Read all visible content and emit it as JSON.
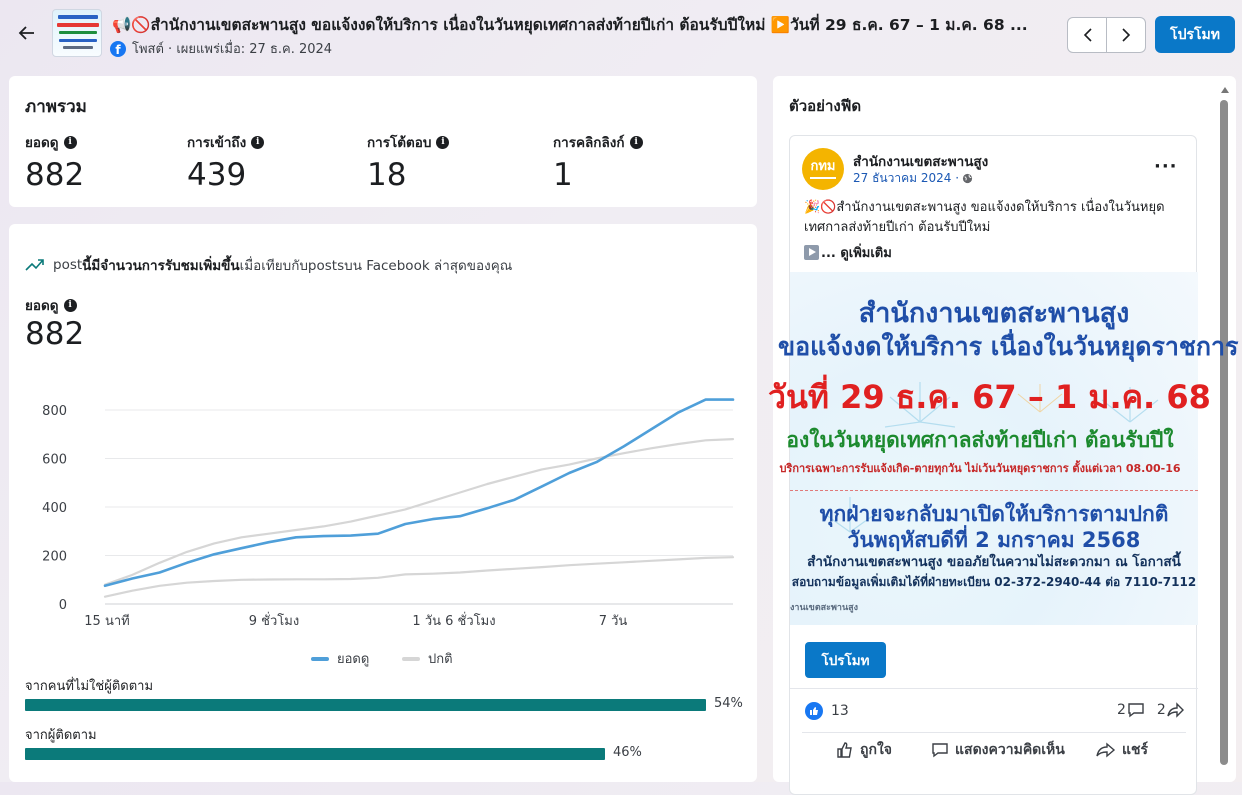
{
  "header": {
    "post_title": "📢🚫สำนักงานเขตสะพานสูง ขอแจ้งงดให้บริการ เนื่องในวันหยุดเทศกาลส่งท้ายปีเก่า ต้อนรับปีใหม่ ▶️วันที่ 29 ธ.ค. 67 – 1 ม.ค. 68 ...",
    "meta": "โพสต์ · เผยแพร่เมื่อ: 27 ธ.ค. 2024",
    "platform_icon": "facebook-icon",
    "promote_label": "โปรโมท"
  },
  "overview": {
    "title": "ภาพรวม",
    "metrics": [
      {
        "label": "ยอดดู",
        "value": "882"
      },
      {
        "label": "การเข้าถึง",
        "value": "439"
      },
      {
        "label": "การโต้ตอบ",
        "value": "18"
      },
      {
        "label": "การคลิกลิงก์",
        "value": "1"
      }
    ]
  },
  "performance": {
    "insight_prefix": "post",
    "insight_bold": "นี้มีจำนวนการรับชมเพิ่มขึ้น",
    "insight_suffix": "เมื่อเทียบกับpostsบน Facebook ล่าสุดของคุณ",
    "views_label": "ยอดดู",
    "views_value": "882",
    "legend_views": "ยอดดู",
    "legend_typical": "ปกติ",
    "non_followers_label": "จากคนที่ไม่ใช่ผู้ติดตาม",
    "non_followers_pct": "54%",
    "followers_label": "จากผู้ติดตาม",
    "followers_pct": "46%",
    "non_followers_value": 0.54,
    "followers_value": 0.46
  },
  "chart_data": {
    "type": "line",
    "x_tick_labels": [
      "15 นาที",
      "9 ชั่วโมง",
      "1 วัน 6 ชั่วโมง",
      "7 วัน"
    ],
    "ylim": [
      0,
      800
    ],
    "y_ticks": [
      0,
      200,
      400,
      600,
      800
    ],
    "grid": true,
    "legend_position": "bottom",
    "series": [
      {
        "name": "ยอดดู",
        "color": "#4f9fd9",
        "values": [
          75,
          105,
          130,
          170,
          205,
          230,
          255,
          275,
          280,
          282,
          290,
          330,
          350,
          362,
          395,
          430,
          485,
          540,
          585,
          650,
          720,
          790,
          843,
          843
        ]
      },
      {
        "name": "ปกติ",
        "color": "#d6d6d6",
        "values": [
          80,
          120,
          170,
          215,
          250,
          275,
          290,
          305,
          320,
          340,
          365,
          390,
          425,
          460,
          495,
          525,
          555,
          575,
          600,
          622,
          642,
          660,
          675,
          680
        ]
      },
      {
        "name": "",
        "color": "#d6d6d6",
        "values": [
          30,
          55,
          75,
          88,
          95,
          100,
          101,
          102,
          102,
          103,
          108,
          122,
          125,
          130,
          138,
          145,
          152,
          160,
          166,
          172,
          178,
          184,
          190,
          193
        ]
      }
    ]
  },
  "preview": {
    "title": "ตัวอย่างฟีด",
    "page_name": "สำนักงานเขตสะพานสูง",
    "date": "27 ธันวาคม 2024 ·",
    "caption": "🎉🚫สำนักงานเขตสะพานสูง ขอแจ้งงดให้บริการ เนื่องในวันหยุดเทศกาลส่งท้ายปีเก่า ต้อนรับปีใหม่",
    "see_more": "... ดูเพิ่มเติม",
    "avatar_text": "กทม",
    "poster": {
      "line1": "สำนักงานเขตสะพานสูง",
      "line2": "ขอแจ้งงดให้บริการ เนื่องในวันหยุดราชการ",
      "line3": "วันที่ 29 ธ.ค. 67 – 1 ม.ค. 68",
      "line4": "องในวันหยุดเทศกาลส่งท้ายปีเก่า ต้อนรับปีใ",
      "line5": "บริการเฉพาะการรับแจ้งเกิด-ตายทุกวัน ไม่เว้นวันหยุดราชการ ตั้งแต่เวลา 08.00-16",
      "line6": "ทุกฝ่ายจะกลับมาเปิดให้บริการตามปกติ",
      "line7": "วันพฤหัสบดีที่ 2 มกราคม 2568",
      "line8": "สำนักงานเขตสะพานสูง ขออภัยในความไม่สะดวกมา ณ โอกาสนี้",
      "line9": "สอบถามข้อมูลเพิ่มเติมได้ที่ฝ่ายทะเบียน 02-372-2940-44 ต่อ 7110-7112",
      "line10": "งานเขตสะพานสูง"
    },
    "promote_label": "โปรโมท",
    "likes": "13",
    "comments": "2",
    "shares": "2",
    "action_like": "ถูกใจ",
    "action_comment": "แสดงความคิดเห็น",
    "action_share": "แชร์"
  }
}
